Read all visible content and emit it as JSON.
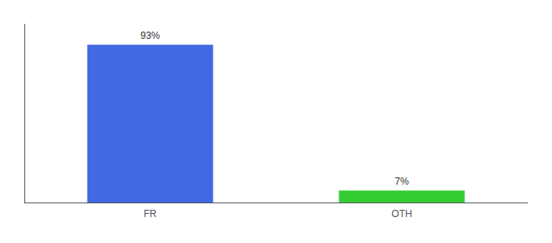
{
  "chart_data": {
    "type": "bar",
    "categories": [
      "FR",
      "OTH"
    ],
    "values": [
      93,
      7
    ],
    "value_labels": [
      "93%",
      "7%"
    ],
    "colors": [
      "#4169E1",
      "#33CC33"
    ],
    "ylim": [
      0,
      105
    ],
    "data_labels": true,
    "tick_labels": "x",
    "grid": false
  }
}
